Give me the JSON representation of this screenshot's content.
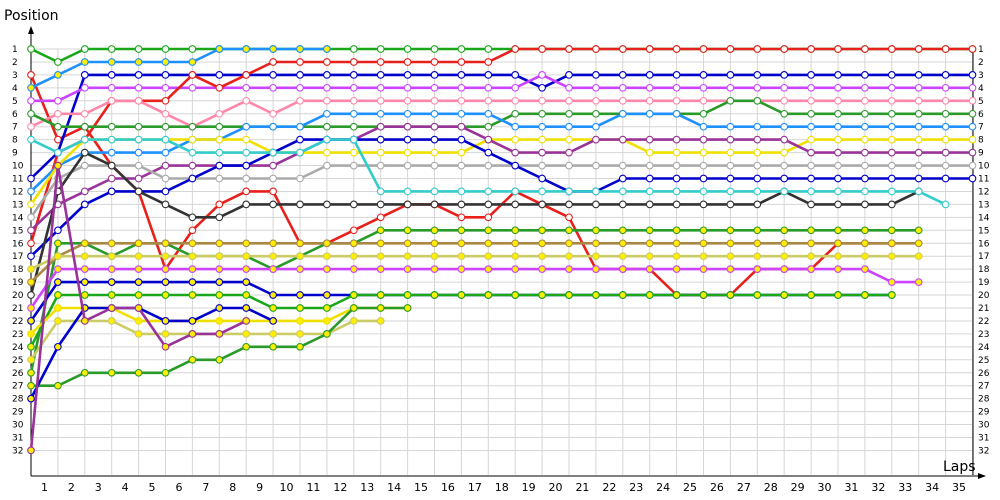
{
  "chart_data": {
    "type": "line",
    "title": "",
    "xlabel": "Laps",
    "ylabel": "Position",
    "xlim": [
      0,
      35
    ],
    "ylim": [
      32,
      1
    ],
    "x": [
      0,
      1,
      2,
      3,
      4,
      5,
      6,
      7,
      8,
      9,
      10,
      11,
      12,
      13,
      14,
      15,
      16,
      17,
      18,
      19,
      20,
      21,
      22,
      23,
      24,
      25,
      26,
      27,
      28,
      29,
      30,
      31,
      32,
      33,
      34,
      35
    ],
    "x_ticks": [
      "1",
      "2",
      "3",
      "4",
      "5",
      "6",
      "7",
      "8",
      "9",
      "10",
      "11",
      "12",
      "13",
      "14",
      "15",
      "16",
      "17",
      "18",
      "19",
      "20",
      "21",
      "22",
      "23",
      "24",
      "25",
      "26",
      "27",
      "28",
      "29",
      "30",
      "31",
      "32",
      "33",
      "34",
      "35"
    ],
    "y_ticks": [
      "1",
      "2",
      "3",
      "4",
      "5",
      "6",
      "7",
      "8",
      "9",
      "10",
      "11",
      "12",
      "13",
      "14",
      "15",
      "16",
      "17",
      "18",
      "19",
      "20",
      "21",
      "22",
      "23",
      "24",
      "25",
      "26",
      "27",
      "28",
      "29",
      "30",
      "31",
      "32"
    ],
    "grid": true,
    "series": [
      {
        "color": "#e8201c",
        "marker": "white",
        "positions": [
          3,
          8,
          7,
          10,
          12,
          18,
          15,
          13,
          12,
          12,
          16,
          16,
          15,
          14,
          13,
          13,
          14,
          14,
          12,
          13,
          14,
          18,
          18,
          18,
          20,
          20,
          20,
          18,
          18,
          18,
          16,
          16,
          16,
          null,
          null,
          null
        ]
      },
      {
        "color": "#1aa81a",
        "marker": "white",
        "positions": [
          1,
          2,
          1,
          1,
          1,
          1,
          1,
          1,
          1,
          1,
          1,
          1,
          1,
          1,
          1,
          1,
          1,
          1,
          1,
          1,
          1,
          1,
          1,
          1,
          1,
          1,
          1,
          1,
          1,
          1,
          1,
          1,
          1,
          1,
          1,
          1
        ]
      },
      {
        "color": "#1e90ff",
        "marker": "yellow",
        "positions": [
          4,
          3,
          2,
          2,
          2,
          2,
          2,
          1,
          1,
          1,
          1,
          1,
          null,
          null,
          null,
          null,
          null,
          null,
          null,
          null,
          null,
          null,
          null,
          null,
          null,
          null,
          null,
          null,
          null,
          null,
          null,
          null,
          null,
          null,
          null,
          null
        ]
      },
      {
        "color": "#0000cc",
        "marker": "white",
        "positions": [
          11,
          9,
          3,
          3,
          3,
          3,
          3,
          3,
          3,
          3,
          3,
          3,
          3,
          3,
          3,
          3,
          3,
          3,
          3,
          4,
          3,
          3,
          3,
          3,
          3,
          3,
          3,
          3,
          3,
          3,
          3,
          3,
          3,
          3,
          3,
          3
        ]
      },
      {
        "color": "#cc44ff",
        "marker": "white",
        "positions": [
          5,
          5,
          4,
          4,
          4,
          4,
          4,
          4,
          4,
          4,
          4,
          4,
          4,
          4,
          4,
          4,
          4,
          4,
          4,
          3,
          4,
          4,
          4,
          4,
          4,
          4,
          4,
          4,
          4,
          4,
          4,
          4,
          4,
          4,
          4,
          4
        ]
      },
      {
        "color": "#e8201c",
        "marker": "white",
        "positions": [
          16,
          9,
          8,
          5,
          5,
          5,
          3,
          4,
          3,
          2,
          2,
          2,
          2,
          2,
          2,
          2,
          2,
          2,
          1,
          1,
          1,
          1,
          1,
          1,
          1,
          1,
          1,
          1,
          1,
          1,
          1,
          1,
          1,
          1,
          1,
          1
        ]
      },
      {
        "color": "#ff88aa",
        "marker": "white",
        "positions": [
          7,
          6,
          6,
          5,
          5,
          6,
          7,
          6,
          5,
          6,
          5,
          5,
          5,
          5,
          5,
          5,
          5,
          5,
          5,
          5,
          5,
          5,
          5,
          5,
          5,
          5,
          5,
          5,
          5,
          5,
          5,
          5,
          5,
          5,
          5,
          5
        ]
      },
      {
        "color": "#2a9a2a",
        "marker": "white",
        "positions": [
          6,
          7,
          7,
          7,
          7,
          7,
          7,
          7,
          7,
          7,
          7,
          7,
          7,
          7,
          7,
          7,
          7,
          7,
          6,
          6,
          6,
          6,
          6,
          6,
          6,
          6,
          5,
          5,
          6,
          6,
          6,
          6,
          6,
          6,
          6,
          6
        ]
      },
      {
        "color": "#1e90ff",
        "marker": "white",
        "positions": [
          12,
          10,
          9,
          9,
          9,
          9,
          8,
          8,
          7,
          7,
          7,
          6,
          6,
          6,
          6,
          6,
          6,
          6,
          7,
          7,
          7,
          7,
          6,
          6,
          6,
          7,
          7,
          7,
          7,
          7,
          7,
          7,
          7,
          7,
          7,
          7
        ]
      },
      {
        "color": "#f0e000",
        "marker": "white",
        "positions": [
          13,
          10,
          8,
          8,
          8,
          8,
          8,
          8,
          8,
          9,
          9,
          9,
          9,
          9,
          9,
          9,
          9,
          8,
          8,
          8,
          8,
          8,
          8,
          9,
          9,
          9,
          9,
          9,
          9,
          8,
          8,
          8,
          8,
          8,
          8,
          8
        ]
      },
      {
        "color": "#993399",
        "marker": "white",
        "positions": [
          15,
          13,
          12,
          11,
          11,
          10,
          10,
          10,
          10,
          10,
          9,
          8,
          8,
          7,
          7,
          7,
          7,
          8,
          9,
          9,
          9,
          8,
          8,
          8,
          8,
          8,
          8,
          8,
          8,
          9,
          9,
          9,
          9,
          9,
          9,
          9
        ]
      },
      {
        "color": "#aaaaaa",
        "marker": "white",
        "positions": [
          14,
          11,
          10,
          10,
          10,
          11,
          11,
          11,
          11,
          11,
          11,
          10,
          10,
          10,
          10,
          10,
          10,
          10,
          10,
          10,
          10,
          10,
          10,
          10,
          10,
          10,
          10,
          10,
          10,
          10,
          10,
          10,
          10,
          10,
          10,
          10
        ]
      },
      {
        "color": "#0000cc",
        "marker": "white",
        "positions": [
          17,
          15,
          13,
          12,
          12,
          12,
          11,
          10,
          10,
          9,
          8,
          8,
          8,
          8,
          8,
          8,
          8,
          9,
          10,
          11,
          12,
          12,
          11,
          11,
          11,
          11,
          11,
          11,
          11,
          11,
          11,
          11,
          11,
          11,
          11,
          11
        ]
      },
      {
        "color": "#333333",
        "marker": "white",
        "positions": [
          20,
          12,
          9,
          10,
          12,
          13,
          14,
          14,
          13,
          13,
          13,
          13,
          13,
          13,
          13,
          13,
          13,
          13,
          13,
          13,
          13,
          13,
          13,
          13,
          13,
          13,
          13,
          13,
          12,
          13,
          13,
          13,
          13,
          12,
          null,
          null
        ]
      },
      {
        "color": "#33cccc",
        "marker": "white",
        "positions": [
          8,
          9,
          8,
          8,
          8,
          8,
          9,
          9,
          9,
          9,
          9,
          8,
          8,
          12,
          12,
          12,
          12,
          12,
          12,
          12,
          12,
          12,
          12,
          12,
          12,
          12,
          12,
          12,
          12,
          12,
          12,
          12,
          12,
          12,
          13,
          null
        ]
      },
      {
        "color": "#2a9a2a",
        "marker": "yellow",
        "positions": [
          26,
          16,
          16,
          17,
          16,
          16,
          17,
          17,
          17,
          18,
          17,
          16,
          16,
          15,
          15,
          15,
          15,
          15,
          15,
          15,
          15,
          15,
          15,
          15,
          15,
          15,
          15,
          15,
          15,
          15,
          15,
          15,
          15,
          15,
          null,
          null
        ]
      },
      {
        "color": "#aa8844",
        "marker": "yellow",
        "positions": [
          19,
          17,
          16,
          16,
          16,
          16,
          16,
          16,
          16,
          16,
          16,
          16,
          16,
          16,
          16,
          16,
          16,
          16,
          16,
          16,
          16,
          16,
          16,
          16,
          16,
          16,
          16,
          16,
          16,
          16,
          16,
          16,
          16,
          16,
          null,
          null
        ]
      },
      {
        "color": "#cccc66",
        "marker": "yellow",
        "positions": [
          18,
          17,
          17,
          17,
          17,
          17,
          17,
          17,
          17,
          17,
          17,
          17,
          17,
          17,
          17,
          17,
          17,
          17,
          17,
          17,
          17,
          17,
          17,
          17,
          17,
          17,
          17,
          17,
          17,
          17,
          17,
          17,
          17,
          17,
          null,
          null
        ]
      },
      {
        "color": "#cc44ff",
        "marker": "yellow",
        "positions": [
          21,
          18,
          18,
          18,
          18,
          18,
          18,
          18,
          18,
          18,
          18,
          18,
          18,
          18,
          18,
          18,
          18,
          18,
          18,
          18,
          18,
          18,
          18,
          18,
          18,
          18,
          18,
          18,
          18,
          18,
          18,
          18,
          19,
          19,
          null,
          null
        ]
      },
      {
        "color": "#0000cc",
        "marker": "yellow",
        "positions": [
          22,
          19,
          19,
          19,
          19,
          19,
          19,
          19,
          19,
          20,
          20,
          20,
          20,
          20,
          20,
          20,
          20,
          20,
          20,
          20,
          20,
          20,
          20,
          20,
          20,
          20,
          20,
          20,
          20,
          20,
          20,
          20,
          20,
          null,
          null,
          null
        ]
      },
      {
        "color": "#1aa81a",
        "marker": "yellow",
        "positions": [
          24,
          20,
          20,
          20,
          20,
          20,
          20,
          20,
          20,
          21,
          21,
          21,
          20,
          20,
          20,
          20,
          20,
          20,
          20,
          20,
          20,
          20,
          20,
          20,
          20,
          20,
          20,
          20,
          20,
          20,
          20,
          20,
          20,
          null,
          null,
          null
        ]
      },
      {
        "color": "#f0e000",
        "marker": "yellow",
        "positions": [
          23,
          21,
          21,
          21,
          22,
          22,
          22,
          22,
          22,
          22,
          22,
          22,
          21,
          21,
          21,
          null,
          null,
          null,
          null,
          null,
          null,
          null,
          null,
          null,
          null,
          null,
          null,
          null,
          null,
          null,
          null,
          null,
          null,
          null,
          null,
          null
        ]
      },
      {
        "color": "#cccc66",
        "marker": "yellow",
        "positions": [
          25,
          22,
          22,
          22,
          23,
          23,
          23,
          23,
          23,
          23,
          23,
          23,
          22,
          22,
          null,
          null,
          null,
          null,
          null,
          null,
          null,
          null,
          null,
          null,
          null,
          null,
          null,
          null,
          null,
          null,
          null,
          null,
          null,
          null,
          null,
          null
        ]
      },
      {
        "color": "#2a9a2a",
        "marker": "yellow",
        "positions": [
          27,
          27,
          26,
          26,
          26,
          26,
          25,
          25,
          24,
          24,
          24,
          23,
          21,
          21,
          21,
          null,
          null,
          null,
          null,
          null,
          null,
          null,
          null,
          null,
          null,
          null,
          null,
          null,
          null,
          null,
          null,
          null,
          null,
          null,
          null,
          null
        ]
      },
      {
        "color": "#0000cc",
        "marker": "yellow",
        "positions": [
          28,
          24,
          21,
          21,
          21,
          22,
          22,
          21,
          21,
          22,
          null,
          null,
          null,
          null,
          null,
          null,
          null,
          null,
          null,
          null,
          null,
          null,
          null,
          null,
          null,
          null,
          null,
          null,
          null,
          null,
          null,
          null,
          null,
          null,
          null,
          null
        ]
      },
      {
        "color": "#993399",
        "marker": "yellow",
        "positions": [
          32,
          10,
          22,
          21,
          21,
          24,
          23,
          23,
          22,
          null,
          null,
          null,
          null,
          null,
          null,
          null,
          null,
          null,
          null,
          null,
          null,
          null,
          null,
          null,
          null,
          null,
          null,
          null,
          null,
          null,
          null,
          null,
          null,
          null,
          null,
          null
        ]
      }
    ]
  }
}
